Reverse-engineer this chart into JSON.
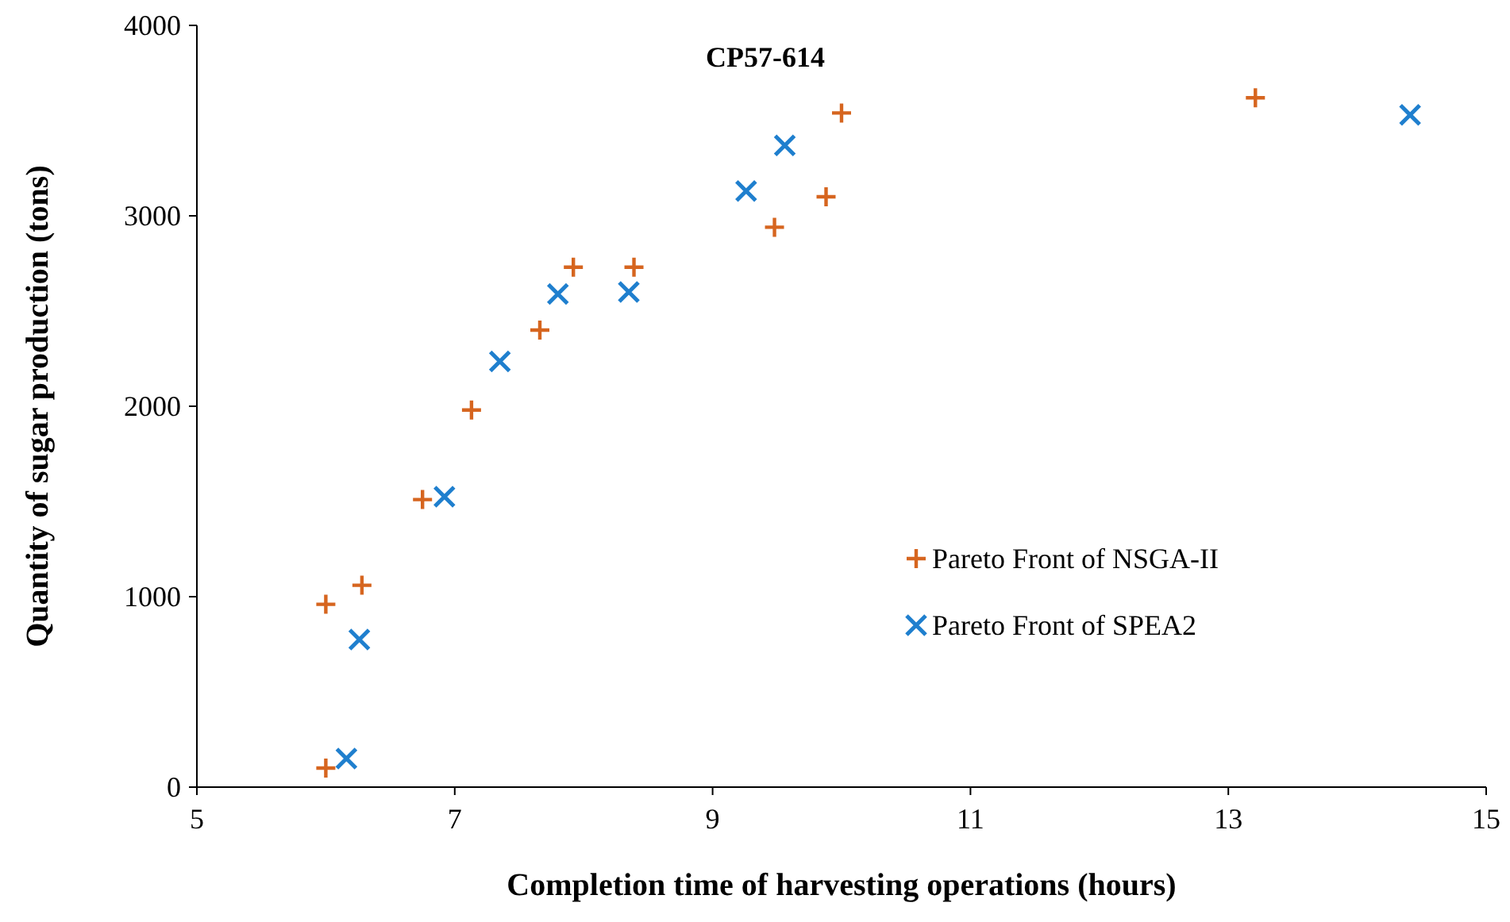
{
  "chart_data": {
    "type": "scatter",
    "title": "CP57-614",
    "xlabel": "Completion time of harvesting operations (hours)",
    "ylabel": "Quantity of sugar production (tons)",
    "xlim": [
      5,
      15
    ],
    "xticks": [
      5,
      7,
      9,
      11,
      13,
      15
    ],
    "ylim": [
      0,
      4000
    ],
    "yticks": [
      0,
      1000,
      2000,
      3000,
      4000
    ],
    "grid": false,
    "legend": "right",
    "series": [
      {
        "name": "Pareto Front of NSGA-II",
        "color": "#d6651f",
        "marker": "cross",
        "x": [
          6.0,
          6.0,
          6.28,
          6.75,
          7.13,
          7.66,
          7.92,
          8.39,
          9.48,
          9.88,
          10.0,
          13.21
        ],
        "values": [
          100,
          960,
          1060,
          1510,
          1980,
          2400,
          2730,
          2730,
          2940,
          3100,
          3540,
          3620
        ]
      },
      {
        "name": "Pareto Front of SPEA2",
        "color": "#1f7fce",
        "marker": "x",
        "x": [
          6.16,
          6.26,
          6.92,
          7.35,
          7.8,
          8.35,
          9.26,
          9.56,
          14.41
        ],
        "values": [
          150,
          775,
          1525,
          2235,
          2590,
          2600,
          3130,
          3370,
          3530
        ]
      }
    ]
  }
}
